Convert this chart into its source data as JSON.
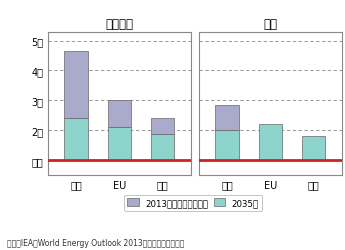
{
  "title_left": "天然ガス",
  "title_right": "電力",
  "categories": [
    "日本",
    "EU",
    "中国"
  ],
  "gas_2035": [
    2.4,
    2.1,
    1.85
  ],
  "gas_total": [
    4.65,
    3.0,
    2.4
  ],
  "elec_2035": [
    2.0,
    2.2,
    1.8
  ],
  "elec_total": [
    2.85,
    2.2,
    1.8
  ],
  "ref_line": 1.0,
  "yticks": [
    1,
    2,
    3,
    4,
    5
  ],
  "yticklabels": [
    "米国",
    "2倍",
    "3倍",
    "4倍",
    "5倍"
  ],
  "ylim": [
    0.5,
    5.3
  ],
  "color_2035": "#8dd4cc",
  "color_reduction": "#aaaacc",
  "ref_color": "#cc2222",
  "legend_label_reduction": "2013年分からの縮小分",
  "legend_label_2035": "2035年",
  "source_text": "資料：IEA『World Energy Outlook 2013』概要版から転載。",
  "bar_width": 0.55,
  "background_color": "#ffffff",
  "grid_color": "#888888",
  "border_color": "#888888"
}
